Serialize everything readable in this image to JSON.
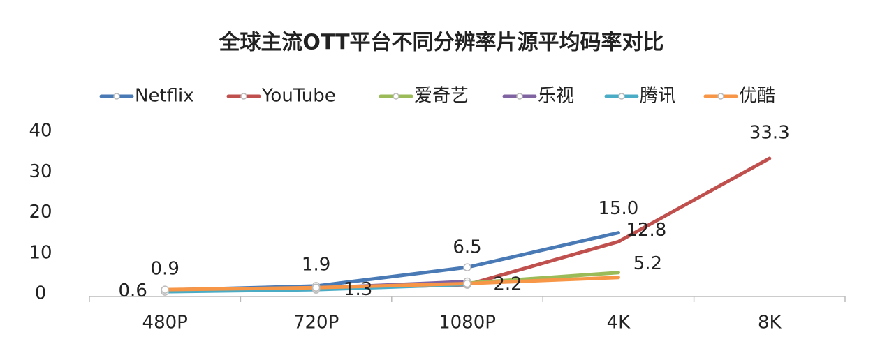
{
  "chart_data": {
    "type": "line",
    "title": "全球主流OTT平台不同分辨率片源平均码率对比",
    "categories": [
      "480P",
      "720P",
      "1080P",
      "4K",
      "8K"
    ],
    "ylim": [
      0,
      40
    ],
    "yticks": [
      0,
      10,
      20,
      30,
      40
    ],
    "grid": false,
    "legend": "top",
    "series": [
      {
        "name": "Netflix",
        "color": "#4a7ab5",
        "values": [
          0.9,
          1.9,
          6.5,
          15.0,
          null
        ],
        "value_labels": [
          "0.9",
          "1.9",
          "6.5",
          "15.0",
          null
        ]
      },
      {
        "name": "YouTube",
        "color": "#c0504d",
        "values": [
          0.6,
          1.3,
          2.2,
          12.8,
          33.3
        ],
        "value_labels": [
          "0.6",
          "1.3",
          "2.2",
          "12.8",
          "33.3"
        ]
      },
      {
        "name": "爱奇艺",
        "color": "#9bbb59",
        "values": [
          0.7,
          1.2,
          2.6,
          5.2,
          null
        ],
        "value_labels": [
          null,
          null,
          null,
          "5.2",
          null
        ]
      },
      {
        "name": "乐视",
        "color": "#8064a2",
        "values": [
          0.8,
          1.4,
          3.0,
          null,
          null
        ]
      },
      {
        "name": "腾讯",
        "color": "#4bacc6",
        "values": [
          0.5,
          1.0,
          2.3,
          null,
          null
        ]
      },
      {
        "name": "优酷",
        "color": "#f79646",
        "values": [
          1.0,
          1.5,
          2.5,
          4.0,
          null
        ]
      }
    ]
  }
}
